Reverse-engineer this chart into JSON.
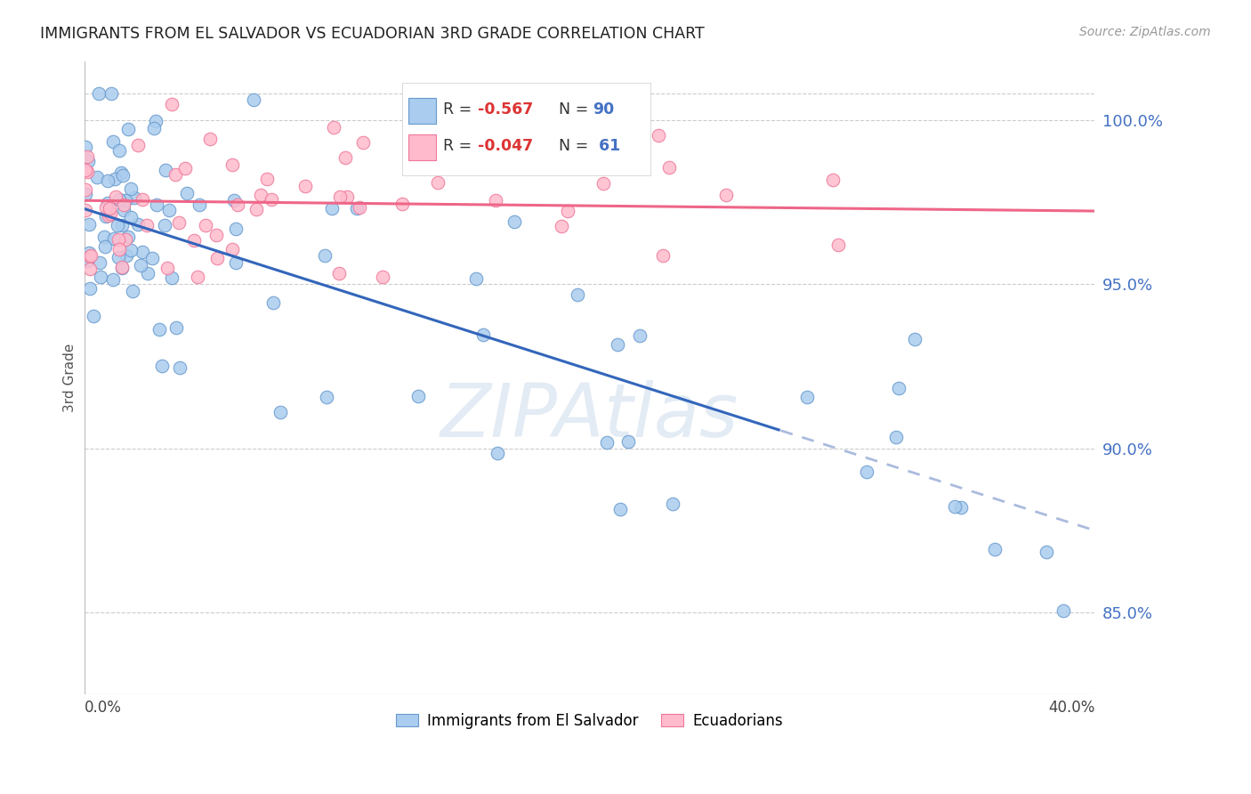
{
  "title": "IMMIGRANTS FROM EL SALVADOR VS ECUADORIAN 3RD GRADE CORRELATION CHART",
  "source": "Source: ZipAtlas.com",
  "ylabel": "3rd Grade",
  "right_yticks": [
    85.0,
    90.0,
    95.0,
    100.0
  ],
  "xmin": 0.0,
  "xmax": 40.0,
  "ymin": 82.5,
  "ymax": 101.8,
  "blue_color": "#aaccee",
  "blue_edge": "#6699cc",
  "pink_color": "#ffbbcc",
  "pink_edge": "#ee7799",
  "blue_line_color": "#3366bb",
  "blue_dash_color": "#aabbdd",
  "pink_line_color": "#ee6688",
  "watermark": "ZIPAtlas",
  "watermark_color": "#c8d8ea",
  "blue_intercept": 97.3,
  "blue_slope": -0.245,
  "pink_intercept": 97.55,
  "pink_slope": -0.008,
  "solid_cutoff": 27.5,
  "blue_n": 90,
  "pink_n": 61
}
